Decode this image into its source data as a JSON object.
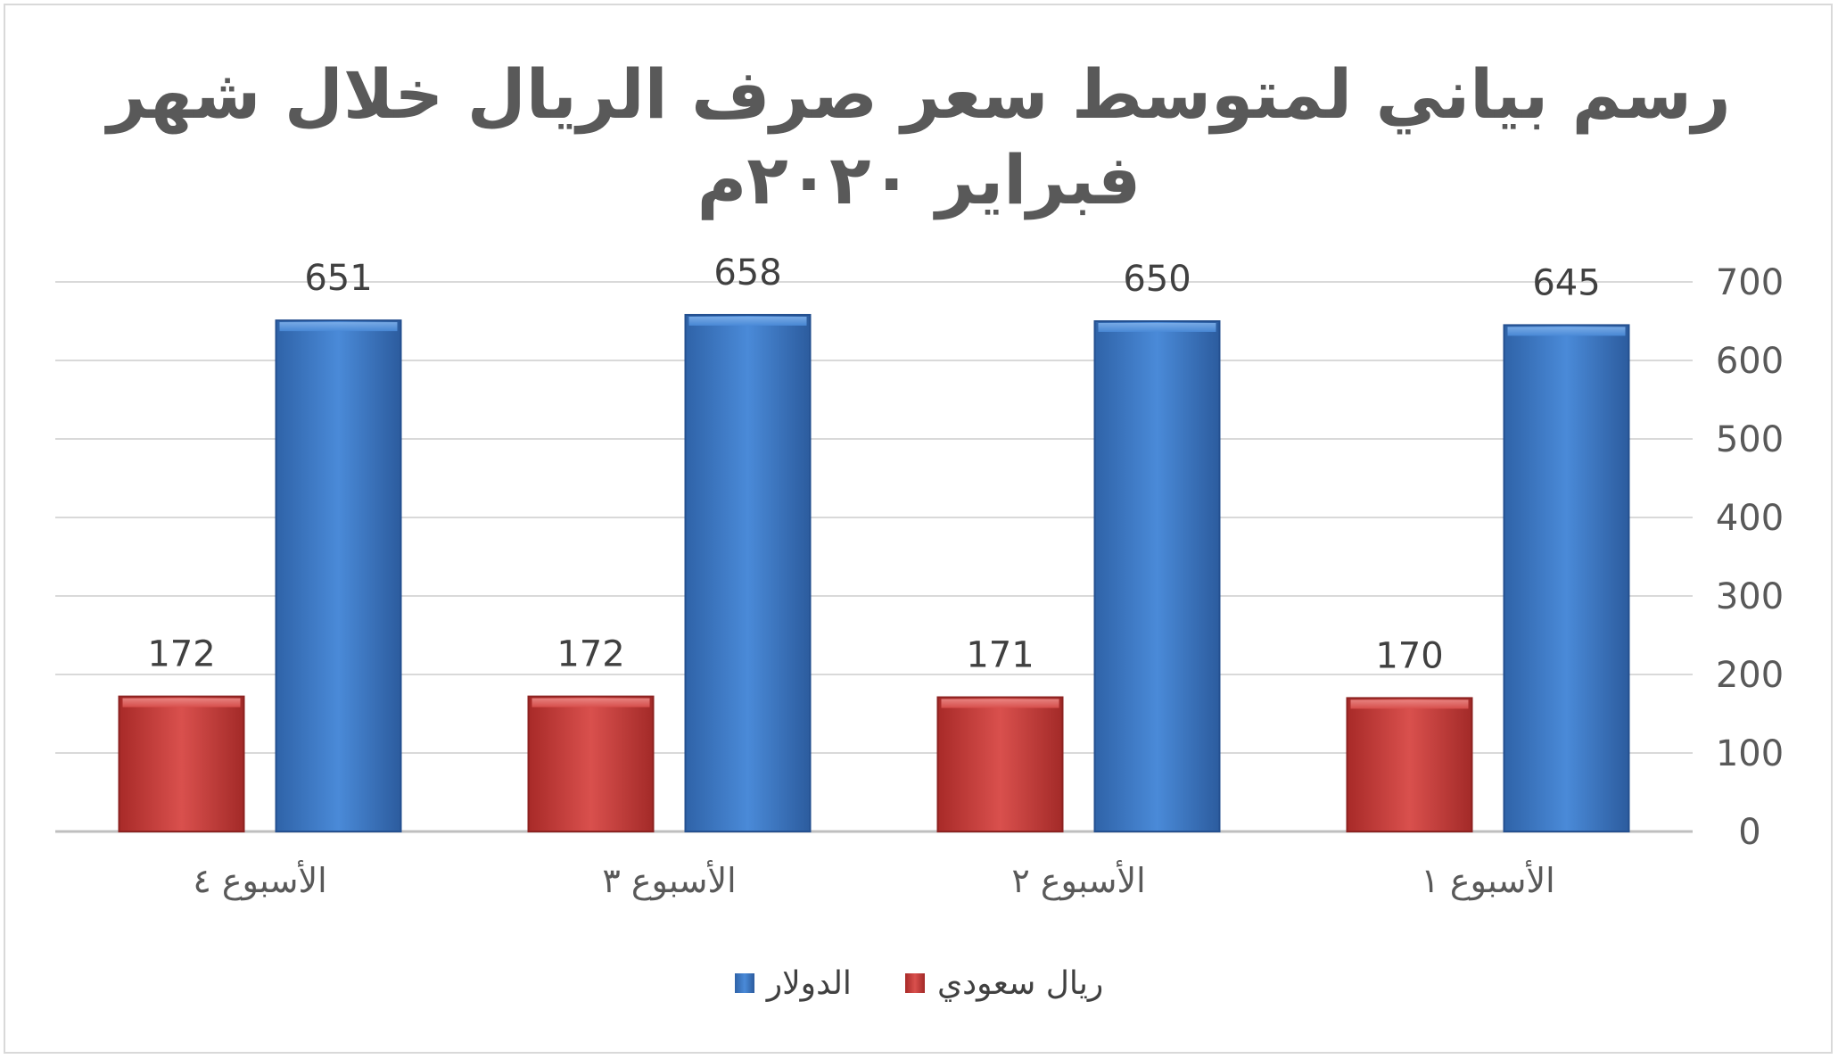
{
  "chart_data": {
    "type": "bar",
    "title_lines": [
      "رسم بياني لمتوسط سعر صرف الريال خلال شهر",
      "فبراير ٢٠٢٠م"
    ],
    "categories": [
      "الأسبوع ١",
      "الأسبوع ٢",
      "الأسبوع ٣",
      "الأسبوع ٤"
    ],
    "series": [
      {
        "name": "الدولار",
        "values": [
          645,
          650,
          658,
          651
        ],
        "color": "#3d7cc9"
      },
      {
        "name": "ريال سعودي",
        "values": [
          170,
          171,
          172,
          172
        ],
        "color": "#c93a38"
      }
    ],
    "ylim": [
      0,
      700
    ],
    "yticks": [
      "0",
      "100",
      "200",
      "300",
      "400",
      "500",
      "600",
      "700"
    ],
    "category_order": "right-to-left",
    "y_axis_side": "right",
    "grid": true,
    "legend_position": "bottom",
    "data_labels": true
  }
}
